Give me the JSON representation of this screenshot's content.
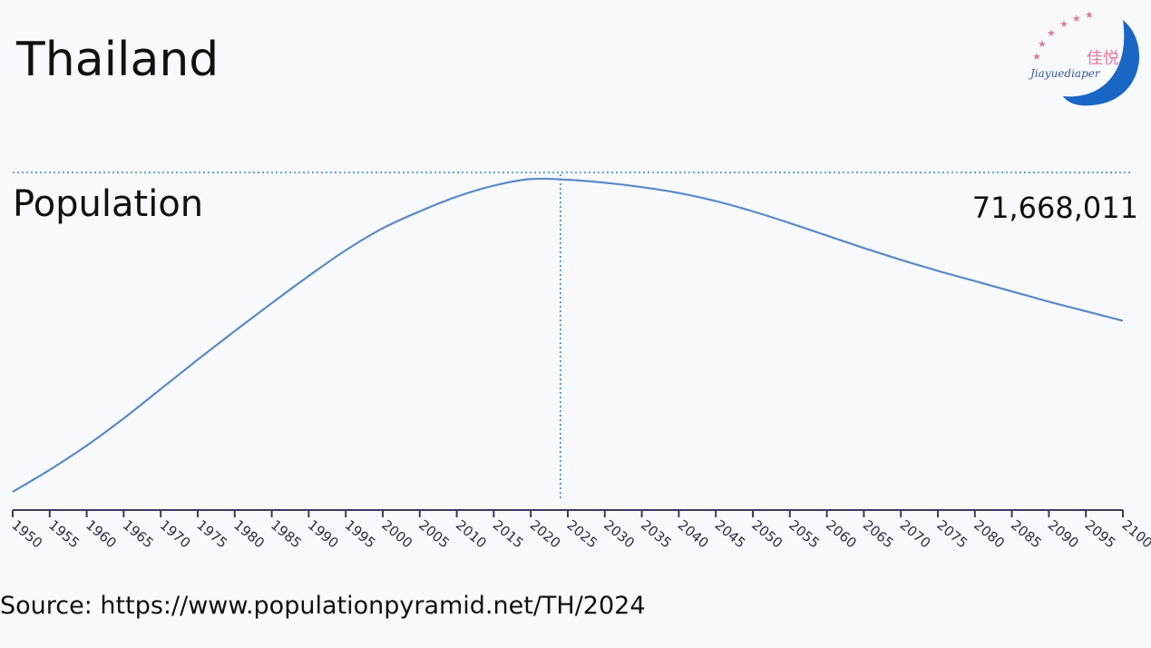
{
  "title": "Thailand",
  "source": "Source:  https://www.populationpyramid.net/TH/2024",
  "logo": {
    "name": "佳悦",
    "text": "Jiayuediaper",
    "star_color": "#e07a9a",
    "moon_color": "#1a66c4"
  },
  "colors": {
    "line": "#5b8ac8",
    "axis": "#3b3b5c",
    "guide": "#3a84c9"
  },
  "chart_data": {
    "type": "line",
    "title": "",
    "series_label": "Population",
    "highlight": {
      "year": 2024,
      "label": "71,668,011"
    },
    "x": [
      1950,
      1955,
      1960,
      1965,
      1970,
      1975,
      1980,
      1985,
      1990,
      1995,
      2000,
      2005,
      2010,
      2015,
      2020,
      2025,
      2030,
      2035,
      2040,
      2045,
      2050,
      2055,
      2060,
      2065,
      2070,
      2075,
      2080,
      2085,
      2090,
      2095,
      2100
    ],
    "y": [
      20.0,
      23.0,
      26.3,
      30.0,
      34.0,
      38.0,
      41.9,
      45.7,
      49.4,
      52.9,
      55.9,
      58.2,
      60.2,
      61.7,
      62.6,
      62.5,
      62.1,
      61.5,
      60.7,
      59.6,
      58.2,
      56.6,
      54.9,
      53.2,
      51.6,
      50.1,
      48.7,
      47.3,
      45.9,
      44.6,
      43.3
    ],
    "y_unit": "relative",
    "xlim": [
      1950,
      2100
    ],
    "ylim": [
      19.0,
      63.5
    ],
    "grid": false,
    "legend": "none"
  }
}
